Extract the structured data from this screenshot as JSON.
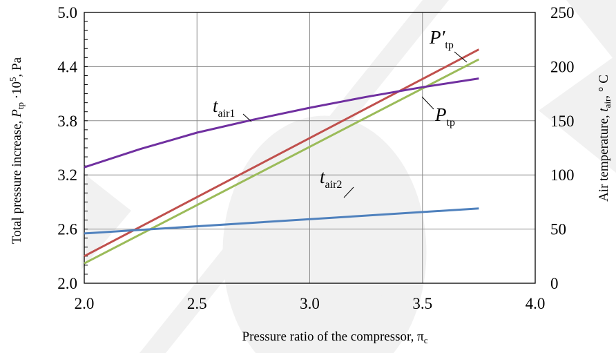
{
  "chart_data": {
    "type": "line",
    "xlabel_main": "Pressure ratio of the compressor,",
    "xlabel_symbol": "π",
    "xlabel_sub": "c",
    "ylabel_left": {
      "main": "Total pressure increase, ",
      "symbol": "P",
      "sub": "tp",
      "factor": " ·10",
      "exp": "5",
      "unit": ", Pa"
    },
    "ylabel_right": {
      "main": "Air temperature, ",
      "symbol": "t",
      "sub": "air",
      "unit": ",  ° C"
    },
    "xlim": [
      2.0,
      4.0
    ],
    "ylim_left": [
      2.0,
      5.0
    ],
    "ylim_right": [
      0,
      250
    ],
    "x_ticks": [
      "2.0",
      "2.5",
      "3.0",
      "3.5",
      "4.0"
    ],
    "y_left_ticks": [
      "2.0",
      "2.6",
      "3.2",
      "3.8",
      "4.4",
      "5.0"
    ],
    "y_right_ticks": [
      "0",
      "50",
      "100",
      "150",
      "200",
      "250"
    ],
    "grid": true,
    "series": [
      {
        "name": "P′tp",
        "label_main": "P′",
        "label_sub": "tp",
        "axis": "left",
        "color": "#c0504d",
        "x": [
          2.0,
          3.75
        ],
        "y": [
          2.3,
          4.59
        ]
      },
      {
        "name": "Ptp",
        "label_main": "P",
        "label_sub": "tp",
        "axis": "left",
        "color": "#9bbb59",
        "x": [
          2.0,
          3.75
        ],
        "y": [
          2.22,
          4.48
        ]
      },
      {
        "name": "tair1",
        "label_main": "t",
        "label_sub": "air1",
        "axis": "right",
        "color": "#7030a0",
        "x": [
          2.0,
          2.25,
          2.5,
          2.75,
          3.0,
          3.25,
          3.5,
          3.75
        ],
        "y": [
          107,
          124,
          139,
          151,
          162,
          172,
          181,
          189
        ]
      },
      {
        "name": "tair2",
        "label_main": "t",
        "label_sub": "air2",
        "axis": "right",
        "color": "#4f81bd",
        "x": [
          2.0,
          3.75
        ],
        "y": [
          46,
          69
        ]
      }
    ]
  }
}
